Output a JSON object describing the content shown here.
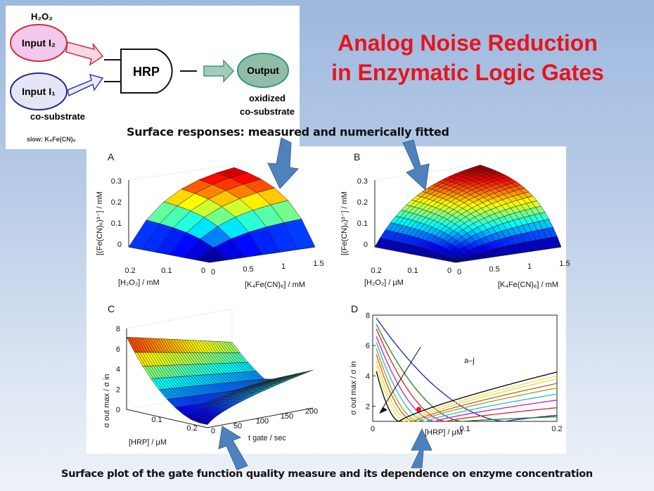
{
  "title": {
    "line1": "Analog Noise Reduction",
    "line2": "in Enzymatic Logic Gates"
  },
  "subtitle": "Surface responses: measured and numerically fitted",
  "caption": "Surface plot of the gate function quality measure and its dependence on enzyme concentration",
  "diagram": {
    "h2o2": "H₂O₂",
    "input2": "Input I₂",
    "input1": "Input I₁",
    "gate": "HRP",
    "output": "Output",
    "output_note1": "oxidized",
    "output_note2": "co-substrate",
    "cosubstrate": "co-substrate",
    "slow": "slow: K₄Fe(CN)₆",
    "colors": {
      "input2": "#f2c8ec",
      "input1": "#e4e6f6",
      "output": "#93bca8",
      "arrow": "#4f81bd"
    }
  },
  "panels": {
    "A": {
      "label": "A",
      "zlabel": "[(Fe(CN)₆)³⁻] / mM",
      "xlabel": "[H₂O₂] / mM",
      "ylabel": "[K₄Fe(CN)₆] / mM",
      "zticks": [
        "0",
        "0.1",
        "0.2",
        "0.3"
      ],
      "xticks": [
        "0.2",
        "0.1",
        "0"
      ],
      "yticks": [
        "0",
        "0.5",
        "1",
        "1.5"
      ]
    },
    "B": {
      "label": "B",
      "zlabel": "[(Fe(CN)₆)³⁻] / mM",
      "xlabel": "[H₂O₂] / μM",
      "ylabel": "[K₄Fe(CN)₆] / mM",
      "zticks": [
        "0",
        "0.1",
        "0.2",
        "0.3"
      ],
      "xticks": [
        "0.2",
        "0.1",
        "0"
      ],
      "yticks": [
        "0",
        "0.5",
        "1",
        "1.5"
      ]
    },
    "C": {
      "label": "C",
      "zlabel": "σ out max / σ in",
      "xlabel": "[HRP] / μM",
      "ylabel": "t gate / sec",
      "zticks": [
        "0",
        "2",
        "4",
        "6",
        "8"
      ],
      "xticks": [
        "0.1",
        "0.2"
      ],
      "yticks": [
        "0",
        "50",
        "100",
        "150",
        "200"
      ]
    },
    "D": {
      "label": "D",
      "ylabel": "σ out max / σ in",
      "xlabel": "[HRP] / μM",
      "annotation": "a–j",
      "yticks": [
        "2",
        "4",
        "6",
        "8"
      ],
      "xticks": [
        "0",
        "0.1",
        "0.2"
      ],
      "series_colors": [
        "#2020c0",
        "#208020",
        "#e02020",
        "#c020c0",
        "#20c0d0",
        "#a0a020",
        "#c06020",
        "#e0e040",
        "#f0e060",
        "#000000"
      ]
    }
  }
}
